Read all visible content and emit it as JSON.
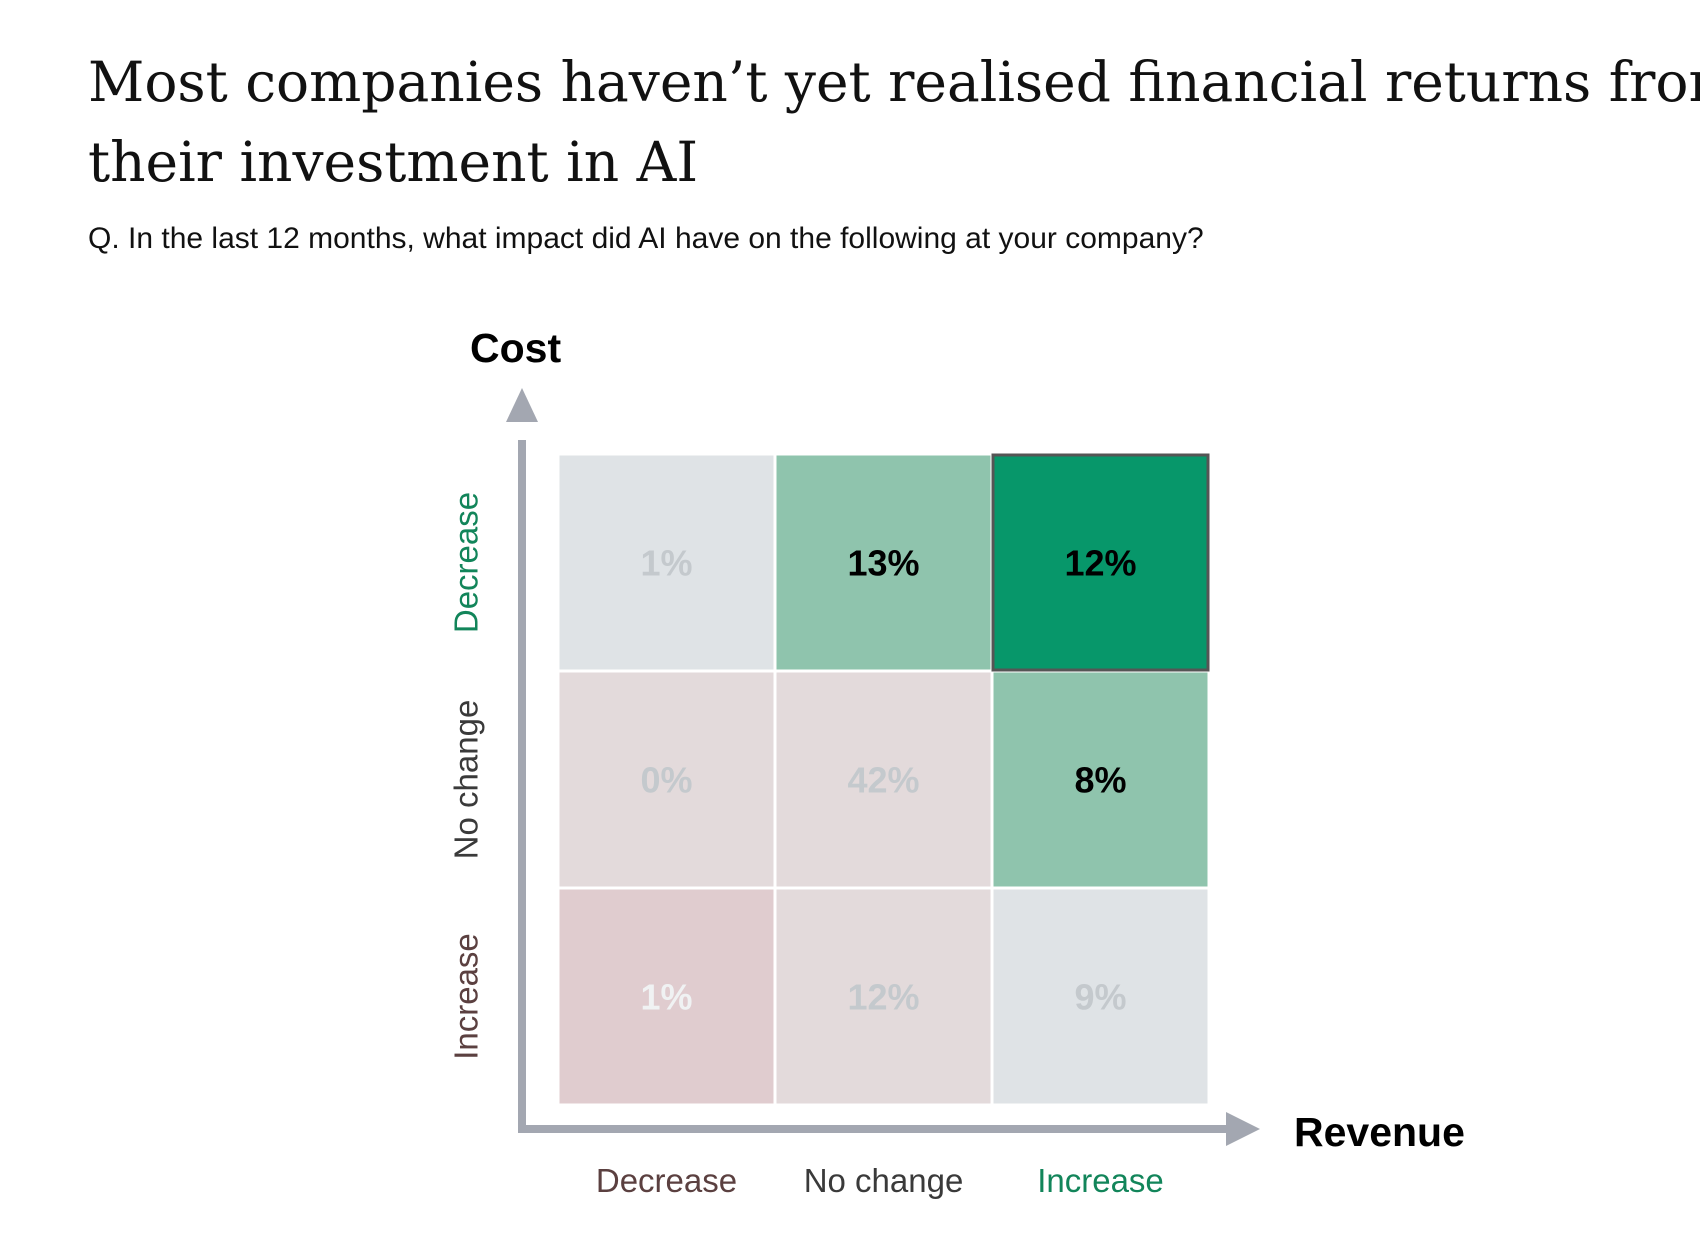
{
  "header": {
    "title_line1": "Most companies haven’t yet realised financial returns from",
    "title_line2": "their investment in AI",
    "subtitle": "Q. In the last 12 months, what impact did AI have on the following at your company?"
  },
  "colors": {
    "decrease_text": "#5b4040",
    "nochange_text": "#3a3a3a",
    "increase_text": "#12855a",
    "axis": "#a3a7b1"
  },
  "chart_data": {
    "type": "heatmap",
    "title": "Most companies haven’t yet realised financial returns from their investment in AI",
    "xlabel": "Revenue",
    "ylabel": "Cost",
    "x_categories": [
      "Decrease",
      "No change",
      "Increase"
    ],
    "y_categories": [
      "Decrease",
      "No change",
      "Increase"
    ],
    "x_category_colors": [
      "#5b4040",
      "#3a3a3a",
      "#12855a"
    ],
    "y_category_colors": [
      "#12855a",
      "#3a3a3a",
      "#5b4040"
    ],
    "unit": "%",
    "values": [
      [
        1,
        13,
        12
      ],
      [
        0,
        42,
        8
      ],
      [
        1,
        12,
        9
      ]
    ],
    "cell_fill": [
      [
        "#dfe3e6",
        "#8fc4ad",
        "#07976a"
      ],
      [
        "#e3dadb",
        "#e3dadb",
        "#8fc4ad"
      ],
      [
        "#e0cccf",
        "#e3dadb",
        "#dfe3e6"
      ]
    ],
    "label_color": [
      [
        "#c4c9cd",
        "#000000",
        "#000000"
      ],
      [
        "#c4c9cd",
        "#c4c9cd",
        "#000000"
      ],
      [
        "#f0f2f3",
        "#c4c9cd",
        "#c4c9cd"
      ]
    ],
    "highlighted_cell": [
      0,
      2
    ]
  }
}
